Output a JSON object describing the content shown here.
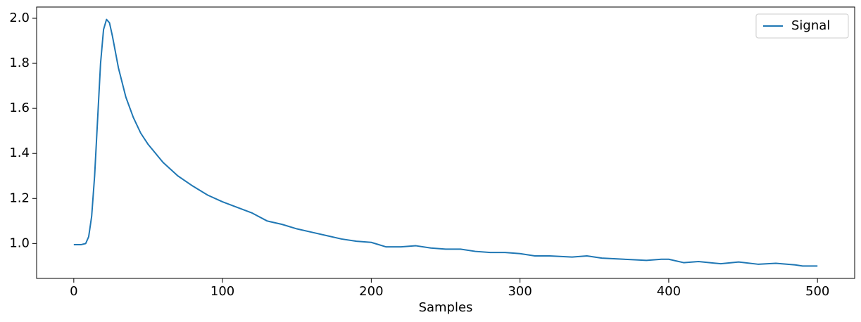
{
  "chart_data": {
    "type": "line",
    "x_label": "Samples",
    "x": [
      0,
      5,
      8,
      10,
      12,
      14,
      16,
      18,
      20,
      22,
      24,
      26,
      28,
      30,
      35,
      40,
      45,
      50,
      60,
      70,
      80,
      90,
      100,
      110,
      120,
      130,
      140,
      150,
      160,
      170,
      180,
      190,
      200,
      210,
      220,
      230,
      240,
      250,
      260,
      270,
      280,
      290,
      300,
      310,
      320,
      335,
      345,
      355,
      370,
      385,
      395,
      400,
      410,
      420,
      435,
      447,
      460,
      472,
      485,
      490,
      500
    ],
    "series": [
      {
        "name": "Signal",
        "color": "#1f77b4",
        "values": [
          0.995,
          0.995,
          1.0,
          1.03,
          1.12,
          1.3,
          1.55,
          1.8,
          1.95,
          1.995,
          1.98,
          1.92,
          1.85,
          1.78,
          1.65,
          1.56,
          1.49,
          1.44,
          1.36,
          1.3,
          1.255,
          1.215,
          1.185,
          1.16,
          1.135,
          1.1,
          1.085,
          1.065,
          1.05,
          1.035,
          1.02,
          1.01,
          1.005,
          0.985,
          0.985,
          0.99,
          0.98,
          0.975,
          0.975,
          0.965,
          0.96,
          0.96,
          0.955,
          0.945,
          0.945,
          0.94,
          0.945,
          0.935,
          0.93,
          0.925,
          0.93,
          0.93,
          0.915,
          0.92,
          0.91,
          0.918,
          0.908,
          0.912,
          0.905,
          0.9,
          0.9
        ]
      }
    ],
    "xlim": [
      -25,
      525
    ],
    "ylim": [
      0.845,
      2.05
    ],
    "xticks": [
      0,
      100,
      200,
      300,
      400,
      500
    ],
    "yticks": [
      {
        "value": 1.0,
        "label": "1.0"
      },
      {
        "value": 1.2,
        "label": "1.2"
      },
      {
        "value": 1.4,
        "label": "1.4"
      },
      {
        "value": 1.6,
        "label": "1.6"
      },
      {
        "value": 1.8,
        "label": "1.8"
      },
      {
        "value": 2.0,
        "label": "2.0"
      }
    ],
    "legend": "upper right"
  }
}
